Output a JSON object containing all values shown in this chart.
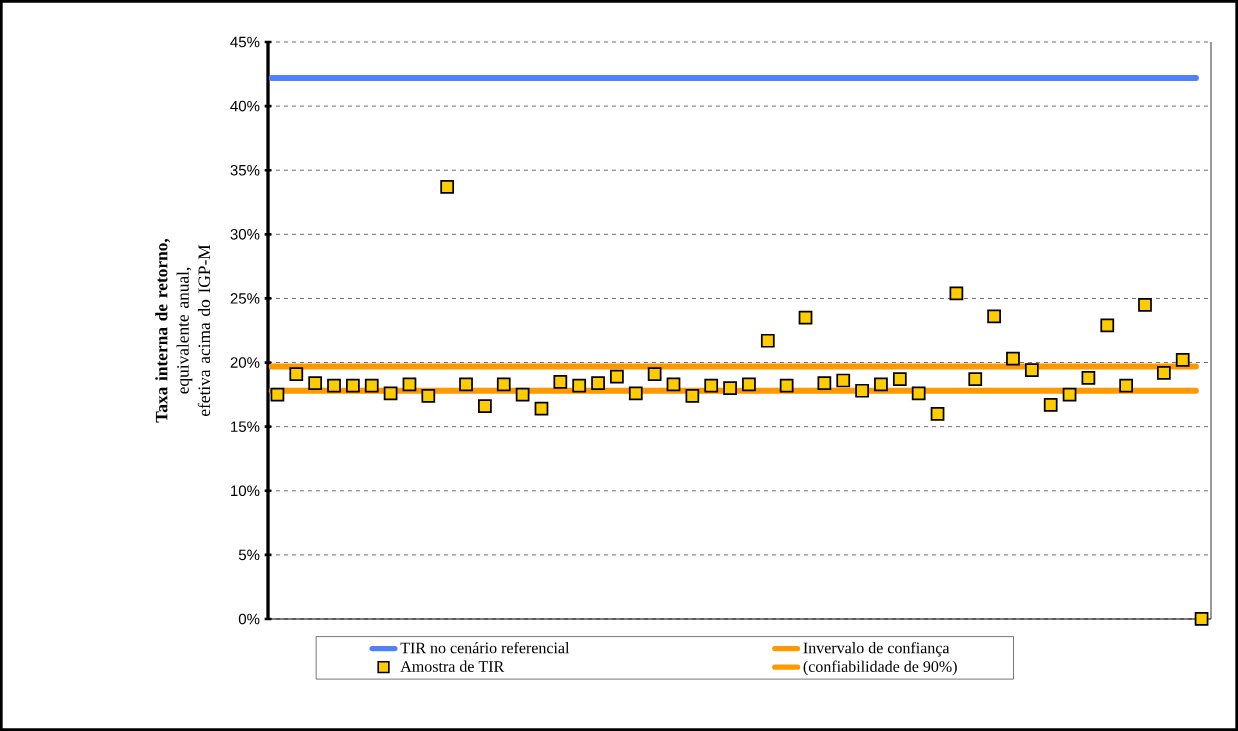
{
  "chart_data": {
    "type": "scatter",
    "ylabel": "**Taxa interna de retorno,** equivalente anual, efetiva acima do IGP-M",
    "categories": [
      null,
      null,
      null,
      null,
      null,
      null,
      null,
      null,
      null,
      null,
      null,
      null,
      null,
      null,
      null,
      null,
      null,
      null,
      null,
      null,
      null,
      null,
      null,
      null,
      null,
      null,
      null,
      null,
      null,
      null,
      null,
      null,
      null,
      null,
      null,
      null,
      null,
      null,
      null,
      null,
      null,
      null,
      null,
      null,
      null,
      null,
      null,
      null,
      null,
      null
    ],
    "series": [
      {
        "name": "Amostra de TIR",
        "color": "#ffcc00",
        "values": [
          17.5,
          19.1,
          18.4,
          18.2,
          18.2,
          18.2,
          17.6,
          18.3,
          17.4,
          33.7,
          18.3,
          16.6,
          18.3,
          17.5,
          16.4,
          18.5,
          18.2,
          18.4,
          18.9,
          17.6,
          19.1,
          18.3,
          17.4,
          18.2,
          18.0,
          18.3,
          21.7,
          18.2,
          23.5,
          18.4,
          18.6,
          17.8,
          18.3,
          18.7,
          17.6,
          16.0,
          25.4,
          18.7,
          23.6,
          20.3,
          19.4,
          16.7,
          17.5,
          18.8,
          22.9,
          18.2,
          24.5,
          19.2,
          20.2,
          0
        ]
      }
    ],
    "marker": "square",
    "ylim": [
      0,
      45
    ],
    "yticks": [
      {
        "value": 0,
        "label": "0%"
      },
      {
        "value": 5,
        "label": "5%"
      },
      {
        "value": 10,
        "label": "10%"
      },
      {
        "value": 15,
        "label": "15%"
      },
      {
        "value": 20,
        "label": "20%"
      },
      {
        "value": 25,
        "label": "25%"
      },
      {
        "value": 30,
        "label": "30%"
      },
      {
        "value": 35,
        "label": "35%"
      },
      {
        "value": 40,
        "label": "40%"
      },
      {
        "value": 45,
        "label": "45%"
      }
    ],
    "grid": "y",
    "legend": "bottom",
    "ref_lines": [
      {
        "axis": "y",
        "value": 42.2,
        "label": "TIR no cenário referencial",
        "color": "#4f81f7"
      },
      {
        "axis": "y",
        "value": 19.7,
        "label": "Invervalo de confiança",
        "color": "#ff9900"
      },
      {
        "axis": "y",
        "value": 17.8,
        "label": "(confiabilidade de 90%)",
        "color": "#ff9900"
      }
    ]
  }
}
